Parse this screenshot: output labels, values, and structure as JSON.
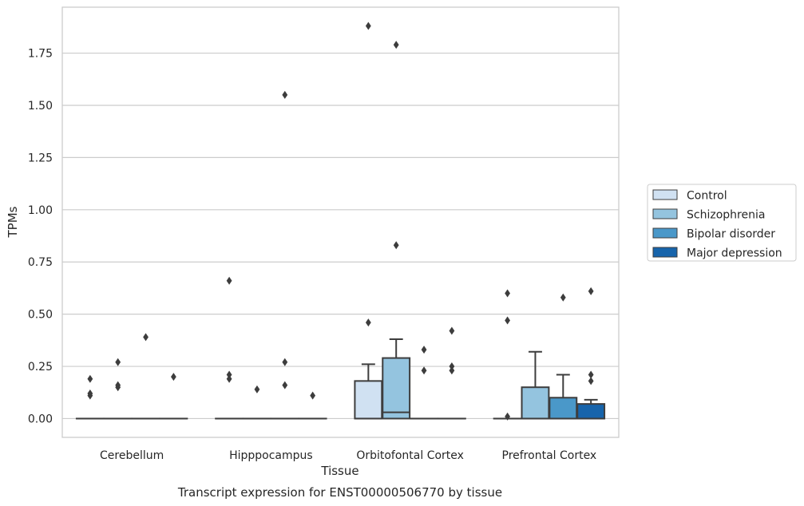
{
  "chart_data": {
    "type": "box",
    "caption": "Transcript expression for ENST00000506770 by tissue",
    "xlabel": "Tissue",
    "ylabel": "TPMs",
    "ylim": [
      -0.09,
      1.97
    ],
    "yticks": [
      0.0,
      0.25,
      0.5,
      0.75,
      1.0,
      1.25,
      1.5,
      1.75
    ],
    "ytick_labels": [
      "0.00",
      "0.25",
      "0.50",
      "0.75",
      "1.00",
      "1.25",
      "1.50",
      "1.75"
    ],
    "grid": "horizontal",
    "legend_position": "right",
    "categories": [
      "Cerebellum",
      "Hipppocampus",
      "Orbitofontal Cortex",
      "Prefrontal Cortex"
    ],
    "series": [
      {
        "name": "Control",
        "color": "#d0e1f2",
        "boxes": [
          {
            "q1": 0,
            "median": 0,
            "q3": 0,
            "whisker_low": 0,
            "whisker_high": 0,
            "outliers": [
              0.19,
              0.12,
              0.11
            ]
          },
          {
            "q1": 0,
            "median": 0,
            "q3": 0,
            "whisker_low": 0,
            "whisker_high": 0,
            "outliers": [
              0.66,
              0.21,
              0.19
            ]
          },
          {
            "q1": 0,
            "median": 0,
            "q3": 0.18,
            "whisker_low": 0,
            "whisker_high": 0.26,
            "outliers": [
              1.88,
              0.46
            ]
          },
          {
            "q1": 0,
            "median": 0,
            "q3": 0,
            "whisker_low": 0,
            "whisker_high": 0,
            "outliers": [
              0.6,
              0.47,
              0.01
            ]
          }
        ]
      },
      {
        "name": "Schizophrenia",
        "color": "#94c4df",
        "boxes": [
          {
            "q1": 0,
            "median": 0,
            "q3": 0,
            "whisker_low": 0,
            "whisker_high": 0,
            "outliers": [
              0.27,
              0.16,
              0.15
            ]
          },
          {
            "q1": 0,
            "median": 0,
            "q3": 0,
            "whisker_low": 0,
            "whisker_high": 0,
            "outliers": [
              0.14
            ]
          },
          {
            "q1": 0,
            "median": 0.03,
            "q3": 0.29,
            "whisker_low": 0,
            "whisker_high": 0.38,
            "outliers": [
              1.79,
              0.83
            ]
          },
          {
            "q1": 0,
            "median": 0,
            "q3": 0.15,
            "whisker_low": 0,
            "whisker_high": 0.32,
            "outliers": []
          }
        ]
      },
      {
        "name": "Bipolar disorder",
        "color": "#4a98c9",
        "boxes": [
          {
            "q1": 0,
            "median": 0,
            "q3": 0,
            "whisker_low": 0,
            "whisker_high": 0,
            "outliers": [
              0.39
            ]
          },
          {
            "q1": 0,
            "median": 0,
            "q3": 0,
            "whisker_low": 0,
            "whisker_high": 0,
            "outliers": [
              1.55,
              0.27,
              0.16
            ]
          },
          {
            "q1": 0,
            "median": 0,
            "q3": 0,
            "whisker_low": 0,
            "whisker_high": 0,
            "outliers": [
              0.33,
              0.23
            ]
          },
          {
            "q1": 0,
            "median": 0,
            "q3": 0.1,
            "whisker_low": 0,
            "whisker_high": 0.21,
            "outliers": [
              0.58
            ]
          }
        ]
      },
      {
        "name": "Major depression",
        "color": "#1764ab",
        "boxes": [
          {
            "q1": 0,
            "median": 0,
            "q3": 0,
            "whisker_low": 0,
            "whisker_high": 0,
            "outliers": [
              0.2
            ]
          },
          {
            "q1": 0,
            "median": 0,
            "q3": 0,
            "whisker_low": 0,
            "whisker_high": 0,
            "outliers": [
              0.11
            ]
          },
          {
            "q1": 0,
            "median": 0,
            "q3": 0,
            "whisker_low": 0,
            "whisker_high": 0,
            "outliers": [
              0.42,
              0.25,
              0.23
            ]
          },
          {
            "q1": 0,
            "median": 0,
            "q3": 0.07,
            "whisker_low": 0,
            "whisker_high": 0.09,
            "outliers": [
              0.61,
              0.21,
              0.18
            ]
          }
        ]
      }
    ]
  }
}
